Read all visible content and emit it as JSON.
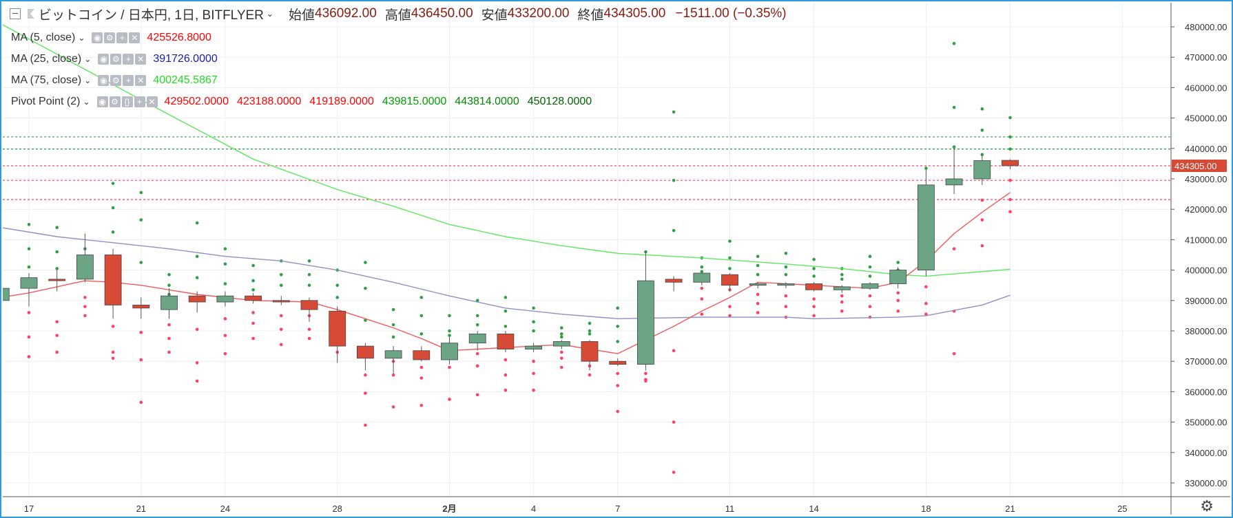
{
  "header": {
    "collapse_icon": "minus-square-icon",
    "symbol": "ビットコイン / 日本円, 1日, BITFLYER",
    "open_label": "始値",
    "open": "436092.00",
    "high_label": "高値",
    "high": "436450.00",
    "low_label": "安値",
    "low": "433200.00",
    "close_label": "終値",
    "close": "434305.00",
    "change": "−1511.00 (−0.35%)"
  },
  "indicators": [
    {
      "label": "MA (5, close)",
      "values": [
        "425526.8000"
      ],
      "colors": [
        "#ff0000"
      ]
    },
    {
      "label": "MA (25, close)",
      "values": [
        "391726.0000"
      ],
      "colors": [
        "#1a1aa8"
      ]
    },
    {
      "label": "MA (75, close)",
      "values": [
        "400245.5867"
      ],
      "colors": [
        "#22dd22"
      ]
    },
    {
      "label": "Pivot Point (2)",
      "values": [
        "429502.0000",
        "423188.0000",
        "419189.0000",
        "439815.0000",
        "443814.0000",
        "450128.0000"
      ],
      "colors": [
        "#ff0000",
        "#ff0000",
        "#ff0000",
        "#00a000",
        "#008800",
        "#006400"
      ]
    }
  ],
  "colors": {
    "up": "#6ba583",
    "down": "#d64a36",
    "ma5": "#f25a5a",
    "ma25": "#8f8fc8",
    "ma75": "#5ee85e",
    "support": "#ff4060",
    "resist": "#2ea043",
    "frame": "#2e9be0"
  },
  "chart_data": {
    "type": "candlestick",
    "ylim": [
      326000,
      485000
    ],
    "y_ticks": [
      "480000.00",
      "470000.00",
      "460000.00",
      "450000.00",
      "440000.00",
      "430000.00",
      "420000.00",
      "410000.00",
      "400000.00",
      "390000.00",
      "380000.00",
      "370000.00",
      "360000.00",
      "350000.00",
      "340000.00",
      "330000.00"
    ],
    "x_ticks": [
      {
        "day": 0,
        "label": "17"
      },
      {
        "day": 4,
        "label": "21"
      },
      {
        "day": 7,
        "label": "24"
      },
      {
        "day": 11,
        "label": "28"
      },
      {
        "day": 15,
        "label": "2月"
      },
      {
        "day": 18,
        "label": "4"
      },
      {
        "day": 21,
        "label": "7"
      },
      {
        "day": 25,
        "label": "11"
      },
      {
        "day": 28,
        "label": "14"
      },
      {
        "day": 32,
        "label": "18"
      },
      {
        "day": 35,
        "label": "21"
      },
      {
        "day": 39,
        "label": "25"
      }
    ],
    "last_price_label": "434305.00",
    "last_price": 434305,
    "candles": [
      {
        "o": 390000,
        "h": 394000,
        "l": 389000,
        "c": 394000
      },
      {
        "o": 394000,
        "h": 399000,
        "l": 388000,
        "c": 397500
      },
      {
        "o": 397000,
        "h": 400000,
        "l": 393000,
        "c": 396500
      },
      {
        "o": 397000,
        "h": 412000,
        "l": 396000,
        "c": 405000
      },
      {
        "o": 405000,
        "h": 407000,
        "l": 384000,
        "c": 388500
      },
      {
        "o": 388500,
        "h": 391000,
        "l": 384000,
        "c": 387500
      },
      {
        "o": 387000,
        "h": 394000,
        "l": 384000,
        "c": 391500
      },
      {
        "o": 391500,
        "h": 393000,
        "l": 386000,
        "c": 389500
      },
      {
        "o": 389500,
        "h": 393000,
        "l": 388000,
        "c": 391500
      },
      {
        "o": 391500,
        "h": 392500,
        "l": 389000,
        "c": 390000
      },
      {
        "o": 390000,
        "h": 391500,
        "l": 388500,
        "c": 389500
      },
      {
        "o": 390000,
        "h": 391000,
        "l": 383000,
        "c": 387000
      },
      {
        "o": 386500,
        "h": 388000,
        "l": 369500,
        "c": 375000
      },
      {
        "o": 375000,
        "h": 376000,
        "l": 367000,
        "c": 371000
      },
      {
        "o": 371000,
        "h": 375000,
        "l": 366000,
        "c": 373500
      },
      {
        "o": 373500,
        "h": 375000,
        "l": 370000,
        "c": 370500
      },
      {
        "o": 370500,
        "h": 378000,
        "l": 369000,
        "c": 376000
      },
      {
        "o": 376000,
        "h": 380000,
        "l": 373500,
        "c": 379000
      },
      {
        "o": 379000,
        "h": 380000,
        "l": 373000,
        "c": 374000
      },
      {
        "o": 374000,
        "h": 376000,
        "l": 373000,
        "c": 375000
      },
      {
        "o": 375000,
        "h": 377000,
        "l": 374000,
        "c": 376500
      },
      {
        "o": 376500,
        "h": 377000,
        "l": 367000,
        "c": 370000
      },
      {
        "o": 370000,
        "h": 371000,
        "l": 368500,
        "c": 369000
      },
      {
        "o": 369000,
        "h": 406000,
        "l": 367000,
        "c": 396500
      },
      {
        "o": 397000,
        "h": 398000,
        "l": 393000,
        "c": 396000
      },
      {
        "o": 396000,
        "h": 399000,
        "l": 395000,
        "c": 399000
      },
      {
        "o": 398500,
        "h": 399000,
        "l": 393000,
        "c": 395000
      },
      {
        "o": 395000,
        "h": 396000,
        "l": 394000,
        "c": 395500
      },
      {
        "o": 395000,
        "h": 396000,
        "l": 394000,
        "c": 395500
      },
      {
        "o": 395500,
        "h": 396000,
        "l": 393000,
        "c": 393500
      },
      {
        "o": 393500,
        "h": 395000,
        "l": 392500,
        "c": 394500
      },
      {
        "o": 394000,
        "h": 396000,
        "l": 393500,
        "c": 395500
      },
      {
        "o": 395500,
        "h": 401000,
        "l": 394000,
        "c": 400000
      },
      {
        "o": 400000,
        "h": 433000,
        "l": 398000,
        "c": 428000
      },
      {
        "o": 428000,
        "h": 440000,
        "l": 425000,
        "c": 430000
      },
      {
        "o": 430000,
        "h": 438000,
        "l": 428000,
        "c": 436000
      },
      {
        "o": 436092,
        "h": 436450,
        "l": 433200,
        "c": 434305
      }
    ],
    "ma5": [
      {
        "d": -1,
        "v": 391000
      },
      {
        "d": 0,
        "v": 392500
      },
      {
        "d": 1,
        "v": 394500
      },
      {
        "d": 2,
        "v": 396500
      },
      {
        "d": 3,
        "v": 396000
      },
      {
        "d": 4,
        "v": 395000
      },
      {
        "d": 6,
        "v": 392000
      },
      {
        "d": 8,
        "v": 390000
      },
      {
        "d": 10,
        "v": 389500
      },
      {
        "d": 11,
        "v": 387000
      },
      {
        "d": 12,
        "v": 384000
      },
      {
        "d": 13,
        "v": 381000
      },
      {
        "d": 14,
        "v": 377500
      },
      {
        "d": 15,
        "v": 373500
      },
      {
        "d": 16,
        "v": 374000
      },
      {
        "d": 18,
        "v": 375000
      },
      {
        "d": 19,
        "v": 375500
      },
      {
        "d": 20,
        "v": 374000
      },
      {
        "d": 21,
        "v": 372500
      },
      {
        "d": 22,
        "v": 377000
      },
      {
        "d": 23,
        "v": 381500
      },
      {
        "d": 24,
        "v": 386500
      },
      {
        "d": 25,
        "v": 391000
      },
      {
        "d": 26,
        "v": 396000
      },
      {
        "d": 28,
        "v": 395000
      },
      {
        "d": 29,
        "v": 394500
      },
      {
        "d": 30,
        "v": 394000
      },
      {
        "d": 31,
        "v": 396000
      },
      {
        "d": 32,
        "v": 403000
      },
      {
        "d": 33,
        "v": 412000
      },
      {
        "d": 34,
        "v": 419000
      },
      {
        "d": 35,
        "v": 425527
      }
    ],
    "ma25": [
      {
        "d": -1,
        "v": 414000
      },
      {
        "d": 1,
        "v": 411000
      },
      {
        "d": 3,
        "v": 409000
      },
      {
        "d": 5,
        "v": 407000
      },
      {
        "d": 7,
        "v": 404500
      },
      {
        "d": 9,
        "v": 403000
      },
      {
        "d": 11,
        "v": 400000
      },
      {
        "d": 13,
        "v": 396000
      },
      {
        "d": 15,
        "v": 391500
      },
      {
        "d": 17,
        "v": 387500
      },
      {
        "d": 19,
        "v": 385500
      },
      {
        "d": 21,
        "v": 384000
      },
      {
        "d": 24,
        "v": 384500
      },
      {
        "d": 27,
        "v": 384500
      },
      {
        "d": 28,
        "v": 384000
      },
      {
        "d": 31,
        "v": 384500
      },
      {
        "d": 32,
        "v": 385000
      },
      {
        "d": 34,
        "v": 388500
      },
      {
        "d": 35,
        "v": 391726
      }
    ],
    "ma75": [
      {
        "d": -1,
        "v": 481000
      },
      {
        "d": 4,
        "v": 456000
      },
      {
        "d": 8,
        "v": 436500
      },
      {
        "d": 11,
        "v": 426500
      },
      {
        "d": 13,
        "v": 421000
      },
      {
        "d": 15,
        "v": 415000
      },
      {
        "d": 17,
        "v": 411000
      },
      {
        "d": 19,
        "v": 408000
      },
      {
        "d": 21,
        "v": 405500
      },
      {
        "d": 24,
        "v": 404000
      },
      {
        "d": 27,
        "v": 402000
      },
      {
        "d": 29,
        "v": 400500
      },
      {
        "d": 31,
        "v": 398500
      },
      {
        "d": 32,
        "v": 398000
      },
      {
        "d": 35,
        "v": 400246
      }
    ],
    "pivot_lines": [
      {
        "v": 443814,
        "color": "#2ea043"
      },
      {
        "v": 439815,
        "color": "#2ea043"
      },
      {
        "v": 434305,
        "color": "#ff4060"
      },
      {
        "v": 429502,
        "color": "#ff4060"
      },
      {
        "v": 423188,
        "color": "#ff4060"
      }
    ],
    "pivot_dots": [
      {
        "d": 0,
        "r": [
          415000,
          407000,
          401000
        ],
        "s": [
          386000,
          378000,
          371500
        ]
      },
      {
        "d": 1,
        "r": [
          414000,
          406000,
          400500
        ],
        "s": [
          383000,
          378500,
          373000
        ]
      },
      {
        "d": 2,
        "r": [
          407000,
          404000,
          399000
        ],
        "s": [
          391000,
          388000,
          385000
        ]
      },
      {
        "d": 3,
        "r": [
          428500,
          420500,
          412500
        ],
        "s": [
          381500,
          373000,
          371000
        ]
      },
      {
        "d": 4,
        "r": [
          425500,
          416500,
          402500
        ],
        "s": [
          379500,
          370500,
          356500
        ]
      },
      {
        "d": 5,
        "r": [
          398500,
          395000,
          392000
        ],
        "s": [
          382000,
          377500,
          373000
        ]
      },
      {
        "d": 6,
        "r": [
          415500,
          404500,
          397500
        ],
        "s": [
          380500,
          369500,
          363500
        ]
      },
      {
        "d": 7,
        "r": [
          407000,
          402000,
          395500
        ],
        "s": [
          384000,
          378500,
          372500
        ]
      },
      {
        "d": 8,
        "r": [
          401500,
          396500,
          393500
        ],
        "s": [
          386000,
          382500,
          377500
        ]
      },
      {
        "d": 9,
        "r": [
          403000,
          398500,
          395000
        ],
        "s": [
          385000,
          380500,
          375500
        ]
      },
      {
        "d": 10,
        "r": [
          403000,
          398500,
          395000
        ],
        "s": [
          385000,
          380500,
          377500
        ]
      },
      {
        "d": 11,
        "r": [
          400000,
          395000,
          391000
        ],
        "s": [
          383000,
          379000,
          373000
        ]
      },
      {
        "d": 12,
        "r": [
          402500,
          394000,
          383500
        ],
        "s": [
          365500,
          359500,
          349000
        ]
      },
      {
        "d": 13,
        "r": [
          387000,
          382000,
          378000
        ],
        "s": [
          370000,
          365500,
          355000
        ]
      },
      {
        "d": 14,
        "r": [
          391000,
          385000,
          379000
        ],
        "s": [
          368000,
          364500,
          355500
        ]
      },
      {
        "d": 15,
        "r": [
          385000,
          380000,
          378500
        ],
        "s": [
          372000,
          368000,
          357500
        ]
      },
      {
        "d": 16,
        "r": [
          390000,
          385000,
          382000
        ],
        "s": [
          372500,
          368500,
          359000
        ]
      },
      {
        "d": 17,
        "r": [
          391000,
          386500,
          381500
        ],
        "s": [
          370500,
          365500,
          360500
        ]
      },
      {
        "d": 18,
        "r": [
          387500,
          383000,
          380000
        ],
        "s": [
          370000,
          366000,
          360500
        ]
      },
      {
        "d": 19,
        "r": [
          381000,
          379000,
          378000
        ],
        "s": [
          373000,
          371000,
          368000
        ]
      },
      {
        "d": 20,
        "r": [
          382500,
          380000,
          379000
        ],
        "s": [
          371500,
          368500,
          365500
        ]
      },
      {
        "d": 21,
        "r": [
          387500,
          381500,
          376500
        ],
        "s": [
          366000,
          362000,
          353500
        ]
      },
      {
        "d": 22,
        "r": [
          406000,
          395000,
          388000
        ],
        "s": [
          366000,
          364000,
          363500
        ]
      },
      {
        "d": 23,
        "r": [
          452000,
          429500,
          413000
        ],
        "s": [
          373500,
          350000,
          333500
        ]
      },
      {
        "d": 24,
        "r": [
          404000,
          401000,
          399500
        ],
        "s": [
          394000,
          390500,
          385500
        ]
      },
      {
        "d": 25,
        "r": [
          409500,
          404000,
          400500
        ],
        "s": [
          393500,
          388000,
          385000
        ]
      },
      {
        "d": 26,
        "r": [
          404500,
          401500,
          398500
        ],
        "s": [
          392000,
          389000,
          386000
        ]
      },
      {
        "d": 27,
        "r": [
          405500,
          401000,
          398500
        ],
        "s": [
          391500,
          388000,
          384500
        ]
      },
      {
        "d": 28,
        "r": [
          403500,
          400500,
          398000
        ],
        "s": [
          390500,
          388000,
          385000
        ]
      },
      {
        "d": 29,
        "r": [
          400500,
          398500,
          397000
        ],
        "s": [
          391500,
          389500,
          386500
        ]
      },
      {
        "d": 30,
        "r": [
          404500,
          401000,
          398000
        ],
        "s": [
          391500,
          388000,
          384500
        ]
      },
      {
        "d": 31,
        "r": [
          402500,
          400000,
          398000
        ],
        "s": [
          392500,
          390000,
          386500
        ]
      },
      {
        "d": 32,
        "r": [
          433500,
          421500,
          410000
        ],
        "s": [
          394500,
          389000,
          385500
        ]
      },
      {
        "d": 33,
        "r": [
          474500,
          453500,
          440500
        ],
        "s": [
          407000,
          386500,
          372500
        ]
      },
      {
        "d": 34,
        "r": [
          453000,
          446000,
          438000
        ],
        "s": [
          423000,
          416500,
          408000
        ]
      },
      {
        "d": 35,
        "r": [
          450128,
          443814,
          439815
        ],
        "s": [
          429502,
          423188,
          419189
        ]
      }
    ]
  }
}
